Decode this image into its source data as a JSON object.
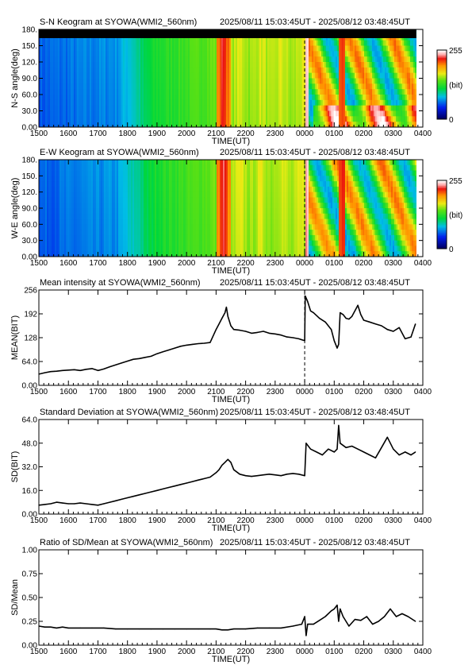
{
  "common": {
    "time_ticks": [
      "1500",
      "1600",
      "1700",
      "1800",
      "1900",
      "2000",
      "2100",
      "2200",
      "2300",
      "0000",
      "0100",
      "0200",
      "0300",
      "0400"
    ],
    "xlabel": "TIME(UT)",
    "range_text": "2025/08/11 15:03:45UT - 2025/08/12 03:48:45UT"
  },
  "chart_data": [
    {
      "type": "heatmap",
      "title": "S-N Keogram at SYOWA(WMI2_560nm)",
      "ylabel": "N-S angle(deg)",
      "yticks": [
        "180.",
        "150.",
        "120.",
        "90.0",
        "60.0",
        "30.0",
        "0.00"
      ],
      "colorbar": {
        "max_label": "255",
        "unit_label": "(bit)",
        "min_label": "0"
      },
      "xlim_hours": [
        15.0,
        28.0
      ],
      "ylim": [
        0,
        180
      ]
    },
    {
      "type": "heatmap",
      "title": "E-W Keogram at SYOWA(WMI2_560nm)",
      "ylabel": "W-E angle(deg)",
      "yticks": [
        "180.",
        "150.",
        "120.",
        "90.0",
        "60.0",
        "30.0",
        "0.00"
      ],
      "colorbar": {
        "max_label": "255",
        "unit_label": "(bit)",
        "min_label": "0"
      },
      "xlim_hours": [
        15.0,
        28.0
      ],
      "ylim": [
        0,
        180
      ]
    },
    {
      "type": "line",
      "title": "Mean intensity at SYOWA(WMI2_560nm)",
      "ylabel": "MEAN(BIT)",
      "yticks": [
        "256",
        "192",
        "128",
        "64.0",
        "0.00"
      ],
      "ylim": [
        0,
        256
      ],
      "xlim_hours": [
        15.0,
        28.0
      ],
      "x_hours": [
        15.0,
        15.2,
        15.4,
        15.6,
        15.8,
        16.0,
        16.2,
        16.4,
        16.6,
        16.8,
        17.0,
        17.2,
        17.4,
        17.6,
        17.8,
        18.0,
        18.2,
        18.4,
        18.6,
        18.8,
        19.0,
        19.2,
        19.4,
        19.6,
        19.8,
        20.0,
        20.2,
        20.4,
        20.6,
        20.8,
        21.0,
        21.1,
        21.2,
        21.3,
        21.35,
        21.4,
        21.5,
        21.6,
        21.8,
        22.0,
        22.2,
        22.4,
        22.6,
        22.8,
        23.0,
        23.2,
        23.4,
        23.6,
        23.8,
        24.0,
        24.02,
        24.1,
        24.2,
        24.3,
        24.5,
        24.7,
        24.9,
        25.0,
        25.1,
        25.15,
        25.2,
        25.3,
        25.4,
        25.5,
        25.6,
        25.7,
        25.8,
        25.9,
        26.0,
        26.2,
        26.4,
        26.6,
        26.8,
        27.0,
        27.2,
        27.4,
        27.6,
        27.75
      ],
      "y": [
        30,
        34,
        37,
        38,
        40,
        41,
        42,
        40,
        43,
        45,
        40,
        44,
        50,
        55,
        60,
        65,
        70,
        72,
        75,
        78,
        85,
        90,
        95,
        100,
        105,
        108,
        110,
        112,
        113,
        115,
        150,
        165,
        180,
        195,
        210,
        185,
        160,
        150,
        148,
        145,
        140,
        142,
        145,
        140,
        138,
        135,
        130,
        128,
        125,
        120,
        240,
        225,
        200,
        195,
        180,
        170,
        150,
        120,
        100,
        110,
        195,
        190,
        180,
        178,
        185,
        200,
        215,
        190,
        175,
        170,
        165,
        160,
        150,
        145,
        155,
        125,
        130,
        165
      ]
    },
    {
      "type": "line",
      "title": "Standard Deviation at SYOWA(WMI2_560nm)",
      "ylabel": "SD(BIT)",
      "yticks": [
        "64.0",
        "48.0",
        "32.0",
        "16.0",
        "0.00"
      ],
      "ylim": [
        0,
        64
      ],
      "xlim_hours": [
        15.0,
        28.0
      ],
      "x_hours": [
        15.0,
        15.2,
        15.4,
        15.6,
        15.8,
        16.0,
        16.2,
        16.4,
        16.6,
        16.8,
        17.0,
        17.2,
        17.4,
        17.6,
        17.8,
        18.0,
        18.2,
        18.4,
        18.6,
        18.8,
        19.0,
        19.2,
        19.4,
        19.6,
        19.8,
        20.0,
        20.2,
        20.4,
        20.6,
        20.8,
        21.0,
        21.1,
        21.2,
        21.3,
        21.4,
        21.5,
        21.6,
        21.8,
        22.0,
        22.2,
        22.4,
        22.6,
        22.8,
        23.0,
        23.2,
        23.4,
        23.6,
        23.8,
        24.0,
        24.05,
        24.2,
        24.4,
        24.6,
        24.8,
        25.0,
        25.1,
        25.15,
        25.2,
        25.4,
        25.6,
        25.8,
        26.0,
        26.2,
        26.4,
        26.6,
        26.8,
        27.0,
        27.2,
        27.4,
        27.6,
        27.75
      ],
      "y": [
        6,
        6.5,
        7,
        8,
        7.5,
        7,
        7,
        7.5,
        7,
        6.5,
        6,
        7,
        8,
        9,
        10,
        11,
        12,
        13,
        14,
        15,
        16,
        17,
        18,
        19,
        20,
        21,
        22,
        23,
        24,
        25,
        28,
        30,
        33,
        35,
        37,
        35,
        30,
        27,
        26,
        25.5,
        26,
        26.5,
        27,
        26.5,
        26,
        27,
        27.5,
        27,
        26,
        48,
        44,
        42,
        40,
        44,
        42,
        44,
        60,
        48,
        45,
        46,
        44,
        42,
        40,
        38,
        45,
        52,
        44,
        40,
        42,
        40,
        42
      ]
    },
    {
      "type": "line",
      "title": "Ratio of SD/Mean at SYOWA(WMI2_560nm)",
      "ylabel": "SD/Mean",
      "yticks": [
        "1.00",
        "0.75",
        "0.50",
        "0.25",
        "0.00"
      ],
      "ylim": [
        0,
        1
      ],
      "xlim_hours": [
        15.0,
        28.0
      ],
      "x_hours": [
        15.0,
        15.2,
        15.4,
        15.6,
        15.8,
        16.0,
        16.4,
        16.8,
        17.2,
        17.6,
        18.0,
        18.4,
        18.8,
        19.2,
        19.6,
        20.0,
        20.4,
        20.8,
        21.0,
        21.2,
        21.4,
        21.6,
        21.8,
        22.0,
        22.4,
        22.8,
        23.2,
        23.6,
        23.9,
        24.0,
        24.05,
        24.1,
        24.3,
        24.5,
        24.7,
        24.9,
        25.0,
        25.1,
        25.15,
        25.2,
        25.3,
        25.5,
        25.7,
        25.9,
        26.1,
        26.3,
        26.5,
        26.7,
        26.9,
        27.1,
        27.3,
        27.5,
        27.75
      ],
      "y": [
        0.2,
        0.19,
        0.19,
        0.18,
        0.19,
        0.18,
        0.18,
        0.18,
        0.18,
        0.17,
        0.17,
        0.17,
        0.17,
        0.17,
        0.17,
        0.17,
        0.17,
        0.17,
        0.17,
        0.16,
        0.16,
        0.17,
        0.17,
        0.17,
        0.18,
        0.18,
        0.18,
        0.2,
        0.22,
        0.3,
        0.1,
        0.22,
        0.22,
        0.26,
        0.3,
        0.36,
        0.38,
        0.42,
        0.25,
        0.38,
        0.3,
        0.2,
        0.27,
        0.26,
        0.3,
        0.22,
        0.25,
        0.3,
        0.38,
        0.3,
        0.33,
        0.3,
        0.25
      ]
    }
  ]
}
